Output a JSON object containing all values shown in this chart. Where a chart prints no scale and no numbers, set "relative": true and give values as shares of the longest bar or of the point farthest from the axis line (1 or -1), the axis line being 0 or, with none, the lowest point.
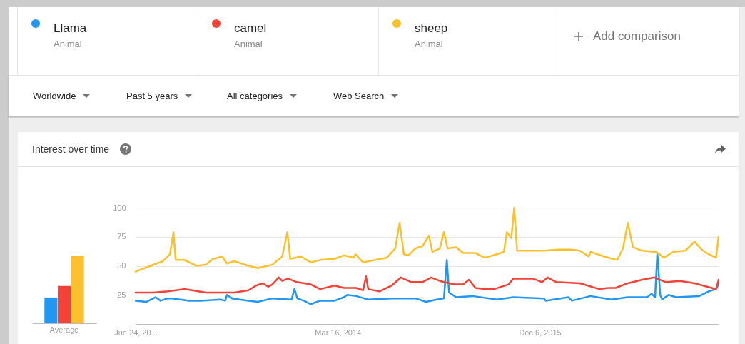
{
  "chart_data": [
    {
      "type": "bar",
      "title": "Interest over time",
      "categories": [
        "Average"
      ],
      "relative": true,
      "series": [
        {
          "color": "#2196f3",
          "values": [
            0.38
          ]
        },
        {
          "color": "#f44336",
          "values": [
            0.55
          ]
        },
        {
          "color": "#fbc02d",
          "values": [
            1
          ]
        }
      ]
    },
    {
      "type": "line",
      "legend": "top",
      "grid": "y",
      "annotations": [
        "Animal",
        "Animal",
        "Animal",
        "Add comparison",
        "Worldwide",
        "Past 5 years",
        "All categories",
        "Web Search"
      ],
      "xlim": [
        "2012-06-24",
        "2017-06-15"
      ],
      "xticks": [
        {
          "value": "2012-06-24",
          "label": "Jun 24, 20..."
        },
        {
          "value": "2014-03-16",
          "label": "Mar 16, 2014"
        },
        {
          "value": "2015-12-06",
          "label": "Dec 6, 2015"
        }
      ],
      "ylim": [
        0,
        100
      ],
      "yticks": [
        25,
        50,
        75,
        100
      ],
      "series": [
        {
          "name": "Llama",
          "color": "#2196f3",
          "x": [
            "2012-06-24",
            "2012-07-27",
            "2012-08-25",
            "2012-09-10",
            "2012-10-02",
            "2012-10-16",
            "2012-12-08",
            "2013-01-13",
            "2013-03-14",
            "2013-03-30",
            "2013-04-05",
            "2013-04-21",
            "2013-06-11",
            "2013-07-10",
            "2013-08-24",
            "2013-10-23",
            "2013-11-01",
            "2013-11-10",
            "2013-11-30",
            "2013-12-22",
            "2014-01-20",
            "2014-03-06",
            "2014-04-04",
            "2014-04-15",
            "2014-05-12",
            "2014-06-19",
            "2014-08-31",
            "2014-11-13",
            "2014-12-16",
            "2015-01-19",
            "2015-02-10",
            "2015-02-19",
            "2015-02-26",
            "2015-03-20",
            "2015-05-10",
            "2015-07-25",
            "2015-09-14",
            "2015-12-19",
            "2015-12-24",
            "2016-03-04",
            "2016-03-15",
            "2016-05-12",
            "2016-07-16",
            "2016-09-05",
            "2016-11-04",
            "2016-11-18",
            "2016-11-29",
            "2016-12-06",
            "2016-12-15",
            "2016-12-21",
            "2017-01-10",
            "2017-02-02",
            "2017-04-16",
            "2017-05-15",
            "2017-06-07",
            "2017-06-15"
          ],
          "values": [
            20,
            19,
            23,
            20,
            22,
            22,
            20,
            20,
            21,
            20,
            25,
            22,
            20,
            19,
            22,
            21,
            30,
            22,
            20,
            17,
            20,
            20,
            23,
            25,
            24,
            21,
            22,
            22,
            19,
            21,
            22,
            55,
            27,
            23,
            24,
            21,
            23,
            22,
            20,
            23,
            20,
            24,
            21,
            23,
            23,
            26,
            23,
            61,
            25,
            21,
            25,
            23,
            24,
            28,
            30,
            34
          ]
        },
        {
          "name": "camel",
          "color": "#f44336",
          "x": [
            "2012-06-24",
            "2012-08-19",
            "2012-10-02",
            "2012-11-23",
            "2013-01-29",
            "2013-03-21",
            "2013-04-28",
            "2013-06-11",
            "2013-07-04",
            "2013-07-26",
            "2013-08-11",
            "2013-08-24",
            "2013-09-13",
            "2013-09-24",
            "2013-10-12",
            "2013-11-08",
            "2013-12-22",
            "2014-01-20",
            "2014-03-06",
            "2014-04-04",
            "2014-05-12",
            "2014-06-03",
            "2014-06-12",
            "2014-06-19",
            "2014-07-24",
            "2014-08-31",
            "2014-09-29",
            "2014-10-31",
            "2014-12-05",
            "2015-01-01",
            "2015-01-28",
            "2015-03-13",
            "2015-04-11",
            "2015-04-29",
            "2015-05-19",
            "2015-06-17",
            "2015-07-16",
            "2015-08-30",
            "2015-09-14",
            "2015-11-14",
            "2015-12-13",
            "2015-12-30",
            "2016-01-26",
            "2016-04-09",
            "2016-06-08",
            "2016-07-07",
            "2016-07-29",
            "2016-09-05",
            "2016-10-20",
            "2016-11-27",
            "2017-01-01",
            "2017-02-15",
            "2017-04-01",
            "2017-05-24",
            "2017-06-07",
            "2017-06-15"
          ],
          "values": [
            27,
            27,
            28,
            30,
            27,
            27,
            27,
            29,
            33,
            35,
            32,
            34,
            40,
            37,
            39,
            36,
            34,
            30,
            33,
            31,
            31,
            29,
            41,
            30,
            28,
            33,
            40,
            36,
            36,
            40,
            37,
            34,
            34,
            38,
            31,
            30,
            30,
            34,
            39,
            39,
            36,
            40,
            36,
            35,
            30,
            31,
            31,
            35,
            38,
            40,
            36,
            37,
            35,
            31,
            30,
            38
          ]
        },
        {
          "name": "sheep",
          "color": "#fbc02d",
          "x": [
            "2012-06-24",
            "2012-07-12",
            "2012-08-10",
            "2012-09-17",
            "2012-10-09",
            "2012-10-20",
            "2012-10-27",
            "2012-11-23",
            "2012-12-31",
            "2013-01-29",
            "2013-02-20",
            "2013-03-21",
            "2013-04-05",
            "2013-04-28",
            "2013-06-11",
            "2013-07-10",
            "2013-08-24",
            "2013-09-24",
            "2013-10-10",
            "2013-10-19",
            "2013-11-21",
            "2013-12-22",
            "2014-01-20",
            "2014-03-06",
            "2014-04-04",
            "2014-05-05",
            "2014-05-10",
            "2014-06-03",
            "2014-07-11",
            "2014-08-16",
            "2014-09-11",
            "2014-09-25",
            "2014-10-08",
            "2014-10-22",
            "2014-11-13",
            "2014-12-05",
            "2014-12-25",
            "2015-01-05",
            "2015-01-28",
            "2015-02-10",
            "2015-02-21",
            "2015-03-20",
            "2015-04-11",
            "2015-05-19",
            "2015-06-17",
            "2015-07-25",
            "2015-08-16",
            "2015-08-25",
            "2015-09-08",
            "2015-09-17",
            "2015-09-26",
            "2015-10-29",
            "2015-12-19",
            "2016-02-02",
            "2016-03-11",
            "2016-04-09",
            "2016-05-06",
            "2016-05-12",
            "2016-06-24",
            "2016-08-03",
            "2016-08-21",
            "2016-09-05",
            "2016-09-21",
            "2016-10-20",
            "2016-12-03",
            "2016-12-26",
            "2017-01-24",
            "2017-03-03",
            "2017-04-01",
            "2017-04-23",
            "2017-05-15",
            "2017-06-07",
            "2017-06-15"
          ],
          "values": [
            45,
            47,
            50,
            54,
            60,
            79,
            55,
            55,
            50,
            51,
            56,
            58,
            52,
            54,
            50,
            48,
            51,
            58,
            79,
            56,
            58,
            53,
            55,
            56,
            59,
            57,
            60,
            53,
            55,
            57,
            65,
            87,
            60,
            59,
            65,
            67,
            76,
            62,
            65,
            79,
            65,
            66,
            61,
            61,
            57,
            60,
            62,
            79,
            74,
            100,
            63,
            63,
            63,
            64,
            64,
            63,
            58,
            62,
            58,
            55,
            65,
            87,
            66,
            63,
            62,
            57,
            62,
            63,
            71,
            64,
            60,
            57,
            75
          ]
        }
      ]
    }
  ]
}
